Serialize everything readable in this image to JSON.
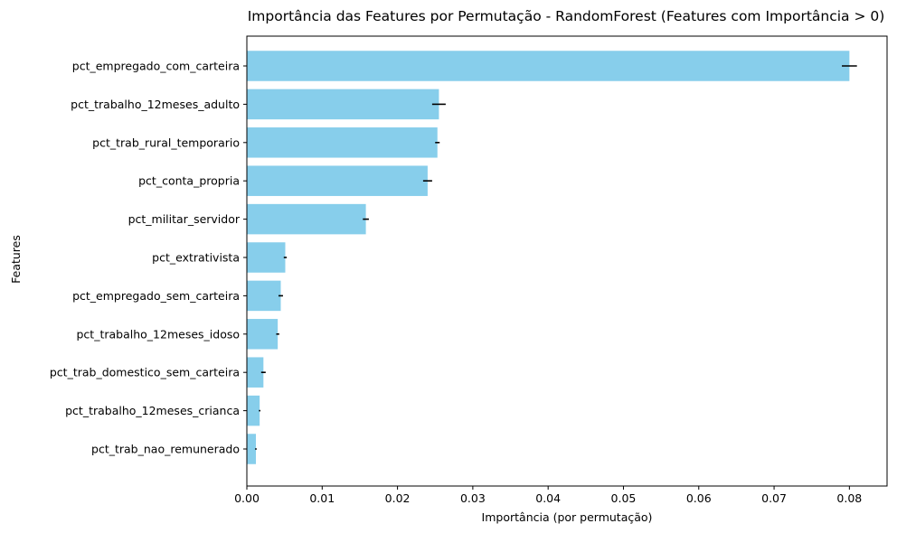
{
  "chart_data": {
    "type": "bar",
    "orientation": "horizontal",
    "title": "Importância das Features por Permutação - RandomForest (Features com Importância > 0)",
    "xlabel": "Importância (por permutação)",
    "ylabel": "Features",
    "xlim": [
      0,
      0.085
    ],
    "xticks": [
      0.0,
      0.01,
      0.02,
      0.03,
      0.04,
      0.05,
      0.06,
      0.07,
      0.08
    ],
    "xtick_labels": [
      "0.00",
      "0.01",
      "0.02",
      "0.03",
      "0.04",
      "0.05",
      "0.06",
      "0.07",
      "0.08"
    ],
    "categories": [
      "pct_empregado_com_carteira",
      "pct_trabalho_12meses_adulto",
      "pct_trab_rural_temporario",
      "pct_conta_propria",
      "pct_militar_servidor",
      "pct_extrativista",
      "pct_empregado_sem_carteira",
      "pct_trabalho_12meses_idoso",
      "pct_trab_domestico_sem_carteira",
      "pct_trabalho_12meses_crianca",
      "pct_trab_nao_remunerado"
    ],
    "values": [
      0.08,
      0.0255,
      0.0253,
      0.024,
      0.0158,
      0.0051,
      0.0045,
      0.0041,
      0.0022,
      0.0017,
      0.0012
    ],
    "errors": [
      0.001,
      0.0009,
      0.0003,
      0.0006,
      0.0004,
      0.0002,
      0.0003,
      0.0002,
      0.0003,
      0.0001,
      0.0001
    ],
    "bar_color": "#87ceeb",
    "error_color": "#000000",
    "grid": false,
    "legend": false
  }
}
